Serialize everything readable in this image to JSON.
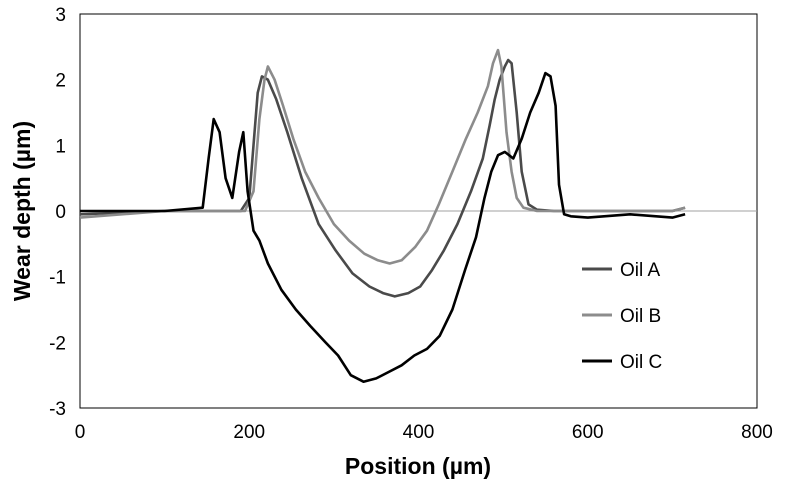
{
  "chart_data": {
    "type": "line",
    "title": "",
    "xlabel": "Position (µm)",
    "ylabel": "Wear depth (µm)",
    "xlim": [
      0,
      800
    ],
    "ylim": [
      -3,
      3
    ],
    "xticks": [
      0,
      200,
      400,
      600,
      800
    ],
    "yticks": [
      3,
      2,
      1,
      0,
      -1,
      -2,
      -3
    ],
    "grid": false,
    "zero_line": true,
    "legend": {
      "position": "right",
      "entries": [
        "Oil A",
        "Oil B",
        "Oil C"
      ]
    },
    "series": [
      {
        "name": "Oil A",
        "color": "#4a4a4a",
        "x": [
          0,
          100,
          190,
          200,
          205,
          210,
          215,
          222,
          232,
          245,
          262,
          282,
          302,
          322,
          342,
          358,
          372,
          388,
          402,
          416,
          430,
          446,
          462,
          476,
          484,
          490,
          496,
          502,
          506,
          510,
          516,
          522,
          530,
          540,
          560,
          600,
          650,
          700,
          715
        ],
        "y": [
          -0.05,
          0,
          0,
          0.2,
          1.0,
          1.8,
          2.05,
          2.0,
          1.7,
          1.2,
          0.5,
          -0.2,
          -0.6,
          -0.95,
          -1.15,
          -1.25,
          -1.3,
          -1.25,
          -1.15,
          -0.9,
          -0.6,
          -0.2,
          0.3,
          0.8,
          1.3,
          1.7,
          2.0,
          2.2,
          2.3,
          2.25,
          1.5,
          0.6,
          0.1,
          0.02,
          0,
          0,
          0,
          0,
          0.05
        ]
      },
      {
        "name": "Oil B",
        "color": "#8c8c8c",
        "x": [
          0,
          100,
          195,
          205,
          212,
          218,
          222,
          230,
          240,
          252,
          266,
          282,
          300,
          318,
          336,
          352,
          366,
          380,
          396,
          410,
          424,
          440,
          456,
          470,
          482,
          488,
          494,
          498,
          504,
          510,
          516,
          524,
          540,
          560,
          600,
          650,
          700,
          715
        ],
        "y": [
          -0.1,
          0,
          0,
          0.3,
          1.4,
          2.0,
          2.2,
          2.0,
          1.6,
          1.1,
          0.6,
          0.2,
          -0.2,
          -0.45,
          -0.65,
          -0.75,
          -0.8,
          -0.75,
          -0.55,
          -0.3,
          0.1,
          0.6,
          1.1,
          1.5,
          1.9,
          2.25,
          2.45,
          2.2,
          1.2,
          0.6,
          0.2,
          0.05,
          0,
          0,
          0,
          0,
          0,
          0.05
        ]
      },
      {
        "name": "Oil C",
        "color": "#000000",
        "x": [
          0,
          100,
          145,
          152,
          158,
          165,
          172,
          180,
          188,
          193,
          198,
          205,
          212,
          222,
          238,
          255,
          272,
          290,
          305,
          320,
          335,
          350,
          365,
          380,
          395,
          410,
          425,
          440,
          455,
          468,
          478,
          486,
          494,
          502,
          512,
          522,
          532,
          542,
          550,
          556,
          562,
          566,
          572,
          580,
          600,
          650,
          700,
          715
        ],
        "y": [
          0,
          0,
          0.05,
          0.8,
          1.4,
          1.2,
          0.5,
          0.2,
          0.9,
          1.2,
          0.3,
          -0.3,
          -0.45,
          -0.8,
          -1.2,
          -1.5,
          -1.75,
          -2.0,
          -2.2,
          -2.5,
          -2.6,
          -2.55,
          -2.45,
          -2.35,
          -2.2,
          -2.1,
          -1.9,
          -1.5,
          -0.9,
          -0.4,
          0.2,
          0.6,
          0.85,
          0.9,
          0.8,
          1.1,
          1.5,
          1.8,
          2.1,
          2.05,
          1.6,
          0.4,
          -0.05,
          -0.08,
          -0.1,
          -0.05,
          -0.1,
          -0.05
        ]
      }
    ]
  }
}
